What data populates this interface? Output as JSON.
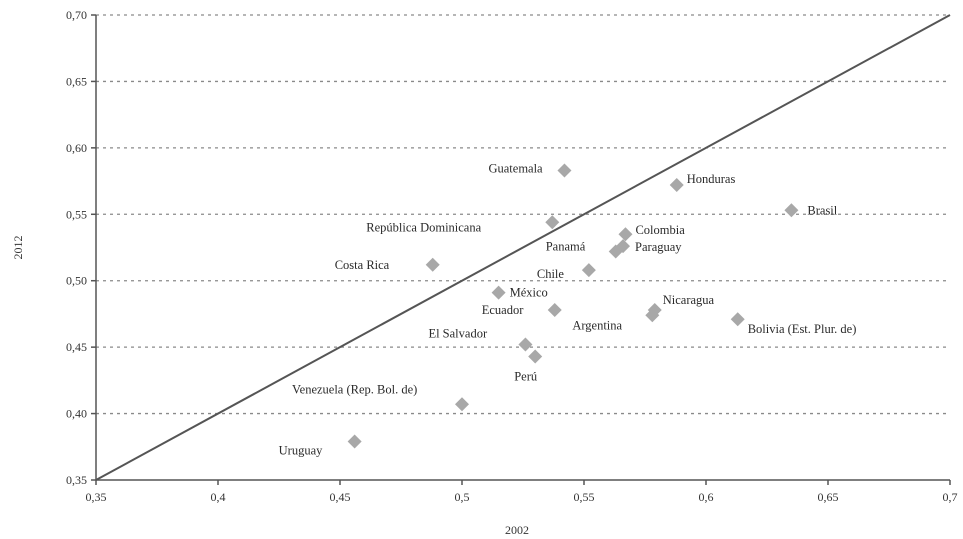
{
  "chart_data": {
    "type": "scatter",
    "xlabel": "2002",
    "ylabel": "2012",
    "xlim": [
      0.35,
      0.7
    ],
    "ylim": [
      0.35,
      0.7
    ],
    "x_ticks": [
      "0,35",
      "0,4",
      "0,45",
      "0,5",
      "0,55",
      "0,6",
      "0,65",
      "0,7"
    ],
    "y_ticks": [
      "0,35",
      "0,40",
      "0,45",
      "0,50",
      "0,55",
      "0,60",
      "0,65",
      "0,70"
    ],
    "grid": "horizontal dashed",
    "reference_line": "y = x",
    "marker_color": "#a8a8a8",
    "points": [
      {
        "label": "Guatemala",
        "x": 0.542,
        "y": 0.583
      },
      {
        "label": "Honduras",
        "x": 0.588,
        "y": 0.572
      },
      {
        "label": "Brasil",
        "x": 0.635,
        "y": 0.553
      },
      {
        "label": "República Dominicana",
        "x": 0.537,
        "y": 0.544
      },
      {
        "label": "Colombia",
        "x": 0.567,
        "y": 0.535
      },
      {
        "label": "Panamá",
        "x": 0.563,
        "y": 0.522
      },
      {
        "label": "Paraguay",
        "x": 0.566,
        "y": 0.526
      },
      {
        "label": "Costa Rica",
        "x": 0.488,
        "y": 0.512
      },
      {
        "label": "Chile",
        "x": 0.552,
        "y": 0.508
      },
      {
        "label": "México",
        "x": 0.515,
        "y": 0.491
      },
      {
        "label": "Ecuador",
        "x": 0.538,
        "y": 0.478
      },
      {
        "label": "Nicaragua",
        "x": 0.579,
        "y": 0.478
      },
      {
        "label": "Argentina",
        "x": 0.578,
        "y": 0.474
      },
      {
        "label": "Bolivia (Est. Plur. de)",
        "x": 0.613,
        "y": 0.471
      },
      {
        "label": "El Salvador",
        "x": 0.526,
        "y": 0.452
      },
      {
        "label": "Perú",
        "x": 0.53,
        "y": 0.443
      },
      {
        "label": "Venezuela (Rep. Bol. de)",
        "x": 0.5,
        "y": 0.407
      },
      {
        "label": "Uruguay",
        "x": 0.456,
        "y": 0.379
      }
    ]
  }
}
